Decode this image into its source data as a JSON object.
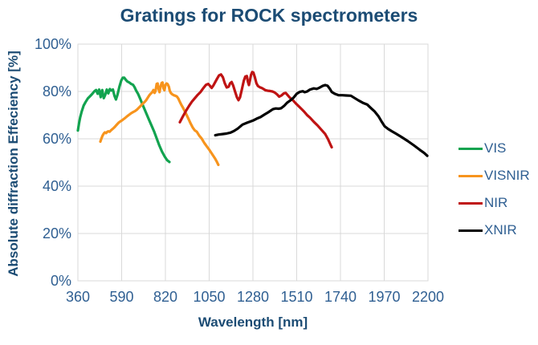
{
  "title": "Gratings for ROCK spectrometers",
  "colors": {
    "title_text": "#1c4c74",
    "tick_text": "#2f5f92",
    "grid": "#d9d9d9",
    "vis": "#12A34F",
    "visnir": "#F7941D",
    "nir": "#BF1313",
    "xnir": "#000000"
  },
  "legend": {
    "items": [
      {
        "label": "VIS",
        "color": "#12A34F"
      },
      {
        "label": "VISNIR",
        "color": "#F7941D"
      },
      {
        "label": "NIR",
        "color": "#BF1313"
      },
      {
        "label": "XNIR",
        "color": "#000000"
      }
    ]
  },
  "chart_data": {
    "type": "line",
    "title": "Gratings for ROCK spectrometers",
    "xlabel": "Wavelength [nm]",
    "ylabel": "Absolute diffraction Effeciency [%]",
    "xlim": [
      360,
      2200
    ],
    "ylim": [
      0,
      100
    ],
    "x_ticks": [
      360,
      590,
      820,
      1050,
      1280,
      1510,
      1740,
      1970,
      2200
    ],
    "y_ticks": [
      0,
      20,
      40,
      60,
      80,
      100
    ],
    "y_tick_suffix": "%",
    "grid": true,
    "legend_position": "right",
    "series": [
      {
        "name": "VIS",
        "color": "#12A34F",
        "points": [
          [
            360,
            63.5
          ],
          [
            366,
            66.5
          ],
          [
            372,
            69
          ],
          [
            380,
            71.5
          ],
          [
            390,
            74
          ],
          [
            400,
            75.5
          ],
          [
            412,
            77
          ],
          [
            424,
            78
          ],
          [
            436,
            79
          ],
          [
            448,
            80.2
          ],
          [
            456,
            80.6
          ],
          [
            464,
            79
          ],
          [
            472,
            80.8
          ],
          [
            480,
            77.6
          ],
          [
            488,
            80.6
          ],
          [
            496,
            77.2
          ],
          [
            504,
            78.6
          ],
          [
            512,
            80.8
          ],
          [
            520,
            79.2
          ],
          [
            528,
            81
          ],
          [
            536,
            80.4
          ],
          [
            544,
            80.8
          ],
          [
            552,
            78.2
          ],
          [
            560,
            76.6
          ],
          [
            568,
            78.6
          ],
          [
            578,
            82
          ],
          [
            588,
            84.6
          ],
          [
            596,
            85.8
          ],
          [
            604,
            85.8
          ],
          [
            612,
            84.9
          ],
          [
            620,
            84.2
          ],
          [
            630,
            83.8
          ],
          [
            640,
            83.2
          ],
          [
            650,
            82.8
          ],
          [
            658,
            81.8
          ],
          [
            666,
            80.4
          ],
          [
            676,
            79
          ],
          [
            688,
            76.8
          ],
          [
            700,
            74.4
          ],
          [
            714,
            71.8
          ],
          [
            730,
            68.7
          ],
          [
            745,
            66
          ],
          [
            760,
            63.2
          ],
          [
            774,
            60.2
          ],
          [
            788,
            57.2
          ],
          [
            802,
            54.6
          ],
          [
            816,
            52.5
          ],
          [
            829,
            51
          ],
          [
            841,
            50.2
          ]
        ]
      },
      {
        "name": "VISNIR",
        "color": "#F7941D",
        "points": [
          [
            478,
            58.8
          ],
          [
            484,
            60.2
          ],
          [
            490,
            61.4
          ],
          [
            496,
            62.2
          ],
          [
            502,
            62.7
          ],
          [
            508,
            62.4
          ],
          [
            514,
            62.9
          ],
          [
            520,
            63.2
          ],
          [
            527,
            63
          ],
          [
            534,
            63.6
          ],
          [
            542,
            64.1
          ],
          [
            550,
            64.7
          ],
          [
            558,
            65.4
          ],
          [
            566,
            66.1
          ],
          [
            574,
            66.8
          ],
          [
            582,
            67.3
          ],
          [
            590,
            67.7
          ],
          [
            600,
            68.3
          ],
          [
            610,
            68.9
          ],
          [
            620,
            69.6
          ],
          [
            630,
            70.2
          ],
          [
            640,
            70.8
          ],
          [
            650,
            71.3
          ],
          [
            660,
            71.7
          ],
          [
            670,
            72.3
          ],
          [
            680,
            73.1
          ],
          [
            690,
            73.9
          ],
          [
            700,
            74.8
          ],
          [
            710,
            75.5
          ],
          [
            718,
            76.2
          ],
          [
            726,
            77.2
          ],
          [
            734,
            78.2
          ],
          [
            742,
            79
          ],
          [
            750,
            79.6
          ],
          [
            757,
            80.6
          ],
          [
            763,
            79.4
          ],
          [
            768,
            80.2
          ],
          [
            774,
            83.2
          ],
          [
            779,
            83.4
          ],
          [
            784,
            81
          ],
          [
            789,
            79.7
          ],
          [
            794,
            81.9
          ],
          [
            800,
            83.6
          ],
          [
            805,
            83.8
          ],
          [
            810,
            81.3
          ],
          [
            815,
            80.5
          ],
          [
            820,
            82.7
          ],
          [
            826,
            83.4
          ],
          [
            832,
            83.1
          ],
          [
            838,
            82
          ],
          [
            843,
            80.3
          ],
          [
            849,
            79.3
          ],
          [
            856,
            78.8
          ],
          [
            864,
            78.4
          ],
          [
            872,
            78.2
          ],
          [
            880,
            77.9
          ],
          [
            888,
            77
          ],
          [
            896,
            75.6
          ],
          [
            904,
            74.3
          ],
          [
            912,
            73.2
          ],
          [
            922,
            71.6
          ],
          [
            932,
            70
          ],
          [
            942,
            68.3
          ],
          [
            952,
            66.5
          ],
          [
            963,
            64.8
          ],
          [
            974,
            63.6
          ],
          [
            985,
            63
          ],
          [
            998,
            61.3
          ],
          [
            1010,
            60.2
          ],
          [
            1024,
            58.3
          ],
          [
            1038,
            56.7
          ],
          [
            1052,
            55.2
          ],
          [
            1066,
            53.5
          ],
          [
            1080,
            51.8
          ],
          [
            1091,
            50.2
          ],
          [
            1098,
            49
          ]
        ]
      },
      {
        "name": "NIR",
        "color": "#BF1313",
        "points": [
          [
            896,
            67
          ],
          [
            912,
            69.5
          ],
          [
            928,
            71.8
          ],
          [
            945,
            74
          ],
          [
            960,
            75.8
          ],
          [
            975,
            77.2
          ],
          [
            990,
            78.6
          ],
          [
            1005,
            79.8
          ],
          [
            1020,
            81.5
          ],
          [
            1033,
            82.8
          ],
          [
            1045,
            83.2
          ],
          [
            1055,
            82.3
          ],
          [
            1063,
            81.5
          ],
          [
            1072,
            82.5
          ],
          [
            1082,
            84
          ],
          [
            1092,
            85.5
          ],
          [
            1102,
            86.8
          ],
          [
            1112,
            87.2
          ],
          [
            1122,
            86
          ],
          [
            1132,
            83.5
          ],
          [
            1142,
            81.7
          ],
          [
            1152,
            82
          ],
          [
            1160,
            83.5
          ],
          [
            1168,
            84
          ],
          [
            1176,
            82.5
          ],
          [
            1186,
            80
          ],
          [
            1196,
            77.5
          ],
          [
            1204,
            76.3
          ],
          [
            1212,
            77.5
          ],
          [
            1222,
            81
          ],
          [
            1232,
            84.5
          ],
          [
            1240,
            86.3
          ],
          [
            1248,
            86.5
          ],
          [
            1254,
            84
          ],
          [
            1259,
            82.7
          ],
          [
            1264,
            84.5
          ],
          [
            1270,
            87
          ],
          [
            1276,
            88.2
          ],
          [
            1282,
            88
          ],
          [
            1290,
            86
          ],
          [
            1298,
            83.5
          ],
          [
            1306,
            82.3
          ],
          [
            1316,
            81.8
          ],
          [
            1326,
            81.5
          ],
          [
            1336,
            81
          ],
          [
            1346,
            80.5
          ],
          [
            1358,
            80.3
          ],
          [
            1370,
            80.2
          ],
          [
            1382,
            80
          ],
          [
            1394,
            79.6
          ],
          [
            1406,
            78.8
          ],
          [
            1418,
            77.8
          ],
          [
            1430,
            78.3
          ],
          [
            1442,
            79.2
          ],
          [
            1452,
            79.4
          ],
          [
            1462,
            78.5
          ],
          [
            1475,
            77.3
          ],
          [
            1490,
            76.3
          ],
          [
            1505,
            75
          ],
          [
            1520,
            73.8
          ],
          [
            1535,
            72.6
          ],
          [
            1550,
            71.4
          ],
          [
            1565,
            70
          ],
          [
            1580,
            68.9
          ],
          [
            1600,
            67.2
          ],
          [
            1620,
            65.6
          ],
          [
            1640,
            63.8
          ],
          [
            1660,
            62
          ],
          [
            1675,
            59.8
          ],
          [
            1686,
            57.8
          ],
          [
            1694,
            56.4
          ]
        ]
      },
      {
        "name": "XNIR",
        "color": "#000000",
        "points": [
          [
            1082,
            61.5
          ],
          [
            1100,
            61.8
          ],
          [
            1120,
            62
          ],
          [
            1140,
            62.2
          ],
          [
            1162,
            62.6
          ],
          [
            1180,
            63.3
          ],
          [
            1200,
            64.3
          ],
          [
            1225,
            66
          ],
          [
            1250,
            66.8
          ],
          [
            1280,
            67.7
          ],
          [
            1300,
            68.5
          ],
          [
            1320,
            69.2
          ],
          [
            1340,
            70.2
          ],
          [
            1360,
            71.2
          ],
          [
            1385,
            72.5
          ],
          [
            1400,
            72.8
          ],
          [
            1415,
            72.7
          ],
          [
            1428,
            72.9
          ],
          [
            1445,
            74
          ],
          [
            1460,
            75.3
          ],
          [
            1478,
            76.3
          ],
          [
            1495,
            77.5
          ],
          [
            1510,
            79
          ],
          [
            1525,
            79.8
          ],
          [
            1542,
            80.1
          ],
          [
            1552,
            79.7
          ],
          [
            1565,
            80
          ],
          [
            1580,
            80.8
          ],
          [
            1600,
            81.3
          ],
          [
            1615,
            81.1
          ],
          [
            1630,
            81.6
          ],
          [
            1645,
            82.3
          ],
          [
            1660,
            82.7
          ],
          [
            1672,
            82.4
          ],
          [
            1685,
            81
          ],
          [
            1694,
            79.8
          ],
          [
            1710,
            79
          ],
          [
            1731,
            78.4
          ],
          [
            1750,
            78.4
          ],
          [
            1770,
            78.3
          ],
          [
            1795,
            78.2
          ],
          [
            1815,
            77.2
          ],
          [
            1835,
            76.2
          ],
          [
            1858,
            75.2
          ],
          [
            1880,
            74.5
          ],
          [
            1900,
            73
          ],
          [
            1920,
            71.5
          ],
          [
            1940,
            69.5
          ],
          [
            1958,
            67
          ],
          [
            1972,
            65.3
          ],
          [
            1990,
            64.2
          ],
          [
            2010,
            63.2
          ],
          [
            2031,
            62.2
          ],
          [
            2060,
            60.8
          ],
          [
            2095,
            59
          ],
          [
            2125,
            57.3
          ],
          [
            2158,
            55.3
          ],
          [
            2180,
            54
          ],
          [
            2196,
            52.8
          ]
        ]
      }
    ]
  }
}
